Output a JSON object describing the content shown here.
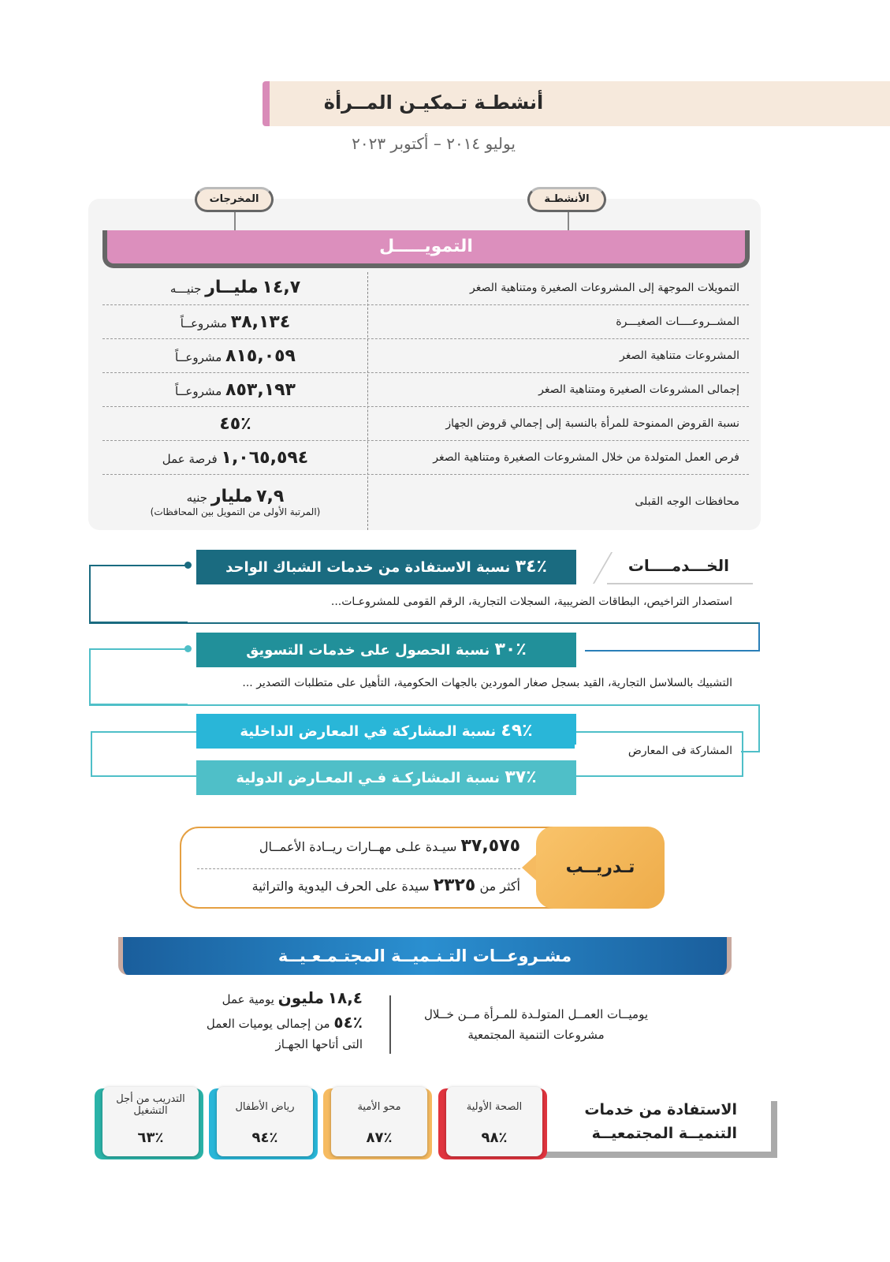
{
  "header": {
    "title": "أنشطـة تـمكيـن المــرأة",
    "subtitle": "يوليو ٢٠١٤ – أكتوبر ٢٠٢٣"
  },
  "tags": {
    "outputs": "المخرجات",
    "activities": "الأنشطـة"
  },
  "funding": {
    "title": "التمويـــــل",
    "rows": [
      {
        "label": "التمويلات الموجهة إلى المشروعات الصغيرة ومتناهية الصغر",
        "value": "١٤,٧",
        "unit_bold": "مليــار",
        "unit": "جنيـــه"
      },
      {
        "label": "المشــروعــــات الصغيـــرة",
        "value": "٣٨,١٣٤",
        "unit_bold": "",
        "unit": "مشروعــاً"
      },
      {
        "label": "المشروعات متناهية الصغر",
        "value": "٨١٥,٠٥٩",
        "unit_bold": "",
        "unit": "مشروعــاً"
      },
      {
        "label": "إجمالى المشروعات الصغيرة ومتناهية الصغر",
        "value": "٨٥٣,١٩٣",
        "unit_bold": "",
        "unit": "مشروعــاً"
      },
      {
        "label": "نسبة القروض الممنوحة للمرأة بالنسبة إلى إجمالي قروض الجهاز",
        "value": "٪٤٥",
        "unit_bold": "",
        "unit": ""
      },
      {
        "label": "فرص العمل المتولدة من خلال المشروعات الصغيرة ومتناهية الصغر",
        "value": "١,٠٦٥,٥٩٤",
        "unit_bold": "",
        "unit": "فرصة عمل"
      },
      {
        "label": "محافظات الوجه القبلى",
        "value": "٧,٩",
        "unit_bold": "مليار",
        "unit": "جنيه",
        "note": "(المرتبة الأولى من التمويل بين المحافظات)"
      }
    ]
  },
  "services": {
    "title": "الخـــدمــــات",
    "bars": [
      {
        "pct": "٪٣٤",
        "text": "نسبة الاستفادة من خدمات الشباك الواحد",
        "color": "#1a6b80"
      },
      {
        "pct": "٪٣٠",
        "text": "نسبة الحصول على خدمات التسويق",
        "color": "#21909a"
      },
      {
        "pct": "٪٤٩",
        "text": "نسبة المشاركة في المعارض الداخلية",
        "color": "#29b6d8"
      },
      {
        "pct": "٪٣٧",
        "text": "نسبة المشاركـة فـي المعـارض الدولية",
        "color": "#4fbfc8"
      }
    ],
    "desc1": "استصدار التراخيص، البطاقات الضريبية، السجلات التجارية، الرقم القومى للمشروعـات...",
    "desc2": "التشبيك بالسلاسل التجارية، القيد بسجل صغار الموردين بالجهات الحكومية، التأهيل على متطلبات التصدير ...",
    "exhibitions_label": "المشاركة فى المعارض"
  },
  "training": {
    "title": "تـدريــب",
    "line1": {
      "value": "٣٧,٥٧٥",
      "text": "سيـدة علـى مهــارات ريــادة الأعمــال"
    },
    "line2": {
      "prefix": "أكثر من",
      "value": "٢٣٢٥",
      "text": "سيدة على الحرف اليدوية والتراثية"
    }
  },
  "community": {
    "title": "مشـروعــات التـنـميــة المجتـمـعـيــة",
    "desc": "يوميــات العمــل المتولـدة للمـرأة مــن خــلال مشروعات التنمية المجتمعية",
    "stat1": {
      "value": "١٨,٤",
      "unit_bold": "مليون",
      "unit": "يومية عمل"
    },
    "stat2": {
      "value": "٪٥٤",
      "text": "من إجمالى يوميات العمل التى أتاحها الجهـاز"
    },
    "benefit_title": "الاستفادة من خدمات التنميــة المجتمعيــة",
    "cards": [
      {
        "label": "الصحة الأولية",
        "value": "٪٩٨",
        "color": "#e0343e"
      },
      {
        "label": "محو الأمية",
        "value": "٪٨٧",
        "color": "#f6bb61"
      },
      {
        "label": "رياض الأطفال",
        "value": "٪٩٤",
        "color": "#29b6d8"
      },
      {
        "label": "التدريب من أجل التشغيل",
        "value": "٪٦٣",
        "color": "#2bb3a8"
      }
    ]
  }
}
